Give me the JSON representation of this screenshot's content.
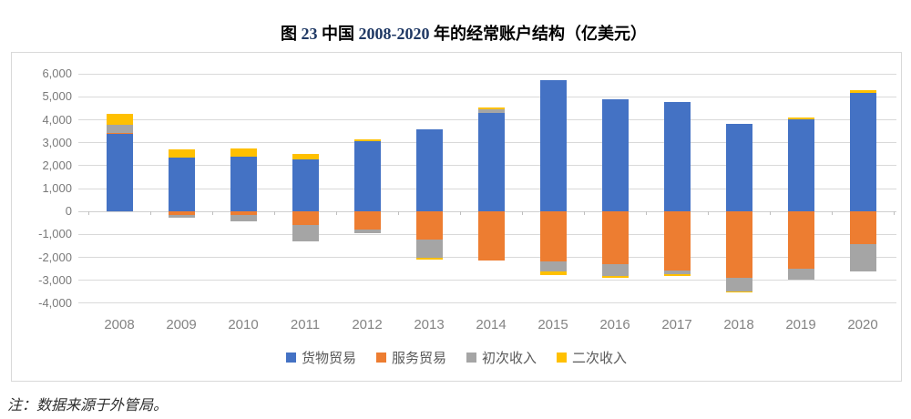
{
  "title": {
    "p1": "图 ",
    "p2": "23",
    "p3": " 中国 ",
    "p4": "2008-2020",
    "p5": " 年的经常账户结构（亿美元）",
    "accent_color": "#1F3864"
  },
  "note": "注：数据来源于外管局。",
  "chart_data": {
    "type": "bar",
    "stacked": true,
    "title": "图 23 中国 2008-2020 年的经常账户结构（亿美元）",
    "unit": "亿美元",
    "categories": [
      "2008",
      "2009",
      "2010",
      "2011",
      "2012",
      "2013",
      "2014",
      "2015",
      "2016",
      "2017",
      "2018",
      "2019",
      "2020"
    ],
    "series": [
      {
        "name": "货物贸易",
        "color": "#4472C4",
        "values": [
          3350,
          2320,
          2360,
          2250,
          3060,
          3560,
          4280,
          5720,
          4860,
          4770,
          3790,
          3990,
          5170
        ]
      },
      {
        "name": "服务贸易",
        "color": "#ED7D31",
        "values": [
          60,
          -180,
          -180,
          -600,
          -810,
          -1230,
          -2150,
          -2200,
          -2330,
          -2610,
          -2910,
          -2520,
          -1450
        ]
      },
      {
        "name": "初次收入",
        "color": "#A5A5A5",
        "values": [
          340,
          -100,
          -260,
          -720,
          -160,
          -820,
          160,
          -450,
          -490,
          -130,
          -600,
          -460,
          -1200
        ]
      },
      {
        "name": "二次收入",
        "color": "#FFC000",
        "values": [
          510,
          360,
          390,
          260,
          60,
          -80,
          90,
          -130,
          -100,
          -80,
          -40,
          80,
          90
        ]
      }
    ],
    "ylim": [
      -4000,
      6000
    ],
    "yticks": {
      "values": [
        6000,
        5000,
        4000,
        3000,
        2000,
        1000,
        0,
        -1000,
        -2000,
        -3000,
        -4000
      ],
      "labels": [
        "6,000",
        "5,000",
        "4,000",
        "3,000",
        "2,000",
        "1,000",
        "0",
        "-1,000",
        "-2,000",
        "-3,000",
        "-4,000"
      ]
    },
    "grid": true,
    "legend_position": "bottom",
    "axis_colors": {
      "gridline": "#D9D9D9",
      "axis": "#CFCFCF",
      "tick": "#BFBFBF",
      "y_label": "#7A7A7A",
      "x_label": "#838383",
      "legend_text": "#595959"
    }
  }
}
